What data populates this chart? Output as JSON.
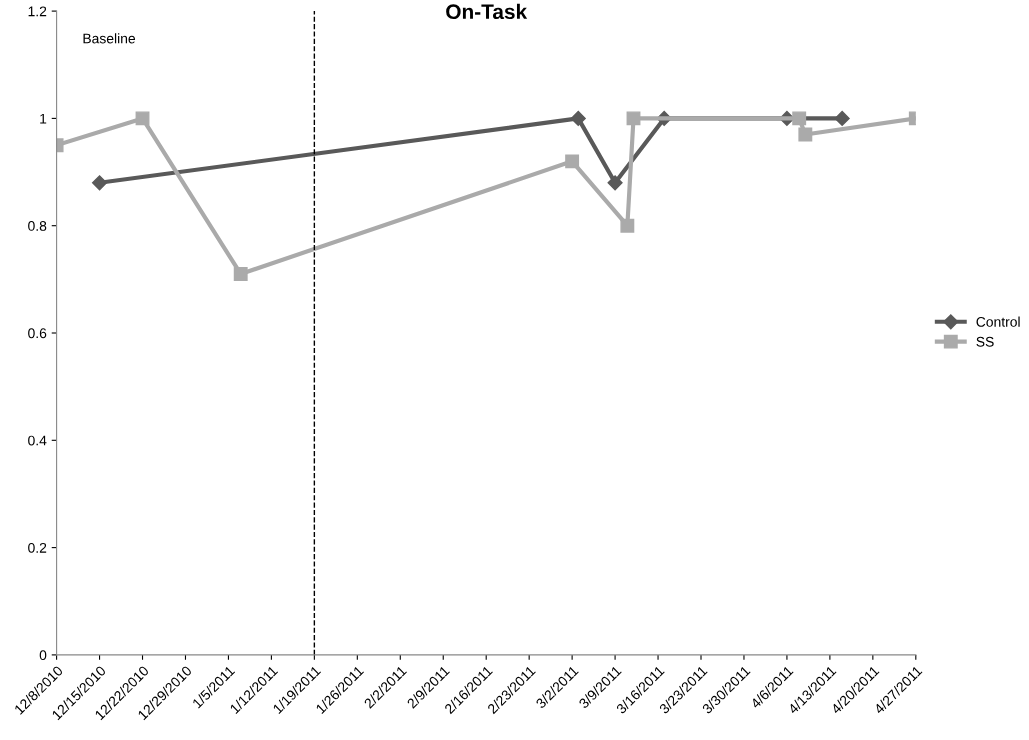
{
  "chart_data": {
    "type": "line",
    "title": "On-Task",
    "annotations": [
      "Baseline"
    ],
    "series": [
      {
        "name": "Control",
        "color": "#595959",
        "marker": "diamond",
        "x": [
          "2010-12-15",
          "2011-03-03",
          "2011-03-09",
          "2011-03-17",
          "2011-04-06",
          "2011-04-15"
        ],
        "values": [
          0.88,
          1,
          0.88,
          1,
          1,
          1
        ]
      },
      {
        "name": "SS",
        "color": "#aaaaaa",
        "marker": "square",
        "x": [
          "2010-12-08",
          "2010-12-22",
          "2011-01-07",
          "2011-03-02",
          "2011-03-11",
          "2011-03-12",
          "2011-04-08",
          "2011-04-09",
          "2011-04-27"
        ],
        "values": [
          0.95,
          1,
          0.71,
          0.92,
          0.8,
          1,
          1,
          0.97,
          1
        ]
      }
    ],
    "ref_lines": [
      {
        "axis": "x",
        "value": "2011-01-19",
        "color": "#000000",
        "line_style": "dashed"
      }
    ],
    "xlim": [
      "2010-12-08",
      "2011-04-27"
    ],
    "xticks": [
      {
        "value": "2010-12-08",
        "label": "12/8/2010"
      },
      {
        "value": "2010-12-15",
        "label": "12/15/2010"
      },
      {
        "value": "2010-12-22",
        "label": "12/22/2010"
      },
      {
        "value": "2010-12-29",
        "label": "12/29/2010"
      },
      {
        "value": "2011-01-05",
        "label": "1/5/2011"
      },
      {
        "value": "2011-01-12",
        "label": "1/12/2011"
      },
      {
        "value": "2011-01-19",
        "label": "1/19/2011"
      },
      {
        "value": "2011-01-26",
        "label": "1/26/2011"
      },
      {
        "value": "2011-02-02",
        "label": "2/2/2011"
      },
      {
        "value": "2011-02-09",
        "label": "2/9/2011"
      },
      {
        "value": "2011-02-16",
        "label": "2/16/2011"
      },
      {
        "value": "2011-02-23",
        "label": "2/23/2011"
      },
      {
        "value": "2011-03-02",
        "label": "3/2/2011"
      },
      {
        "value": "2011-03-09",
        "label": "3/9/2011"
      },
      {
        "value": "2011-03-16",
        "label": "3/16/2011"
      },
      {
        "value": "2011-03-23",
        "label": "3/23/2011"
      },
      {
        "value": "2011-03-30",
        "label": "3/30/2011"
      },
      {
        "value": "2011-04-06",
        "label": "4/6/2011"
      },
      {
        "value": "2011-04-13",
        "label": "4/13/2011"
      },
      {
        "value": "2011-04-20",
        "label": "4/20/2011"
      },
      {
        "value": "2011-04-27",
        "label": "4/27/2011"
      }
    ],
    "ylim": [
      0,
      1.2
    ],
    "yticks": [
      {
        "value": 0,
        "label": "0"
      },
      {
        "value": 0.2,
        "label": "0.2"
      },
      {
        "value": 0.4,
        "label": "0.4"
      },
      {
        "value": 0.6,
        "label": "0.6"
      },
      {
        "value": 0.8,
        "label": "0.8"
      },
      {
        "value": 1,
        "label": "1"
      },
      {
        "value": 1.2,
        "label": "1.2"
      }
    ],
    "grid": false,
    "legend": "right",
    "line_style": "solid"
  }
}
